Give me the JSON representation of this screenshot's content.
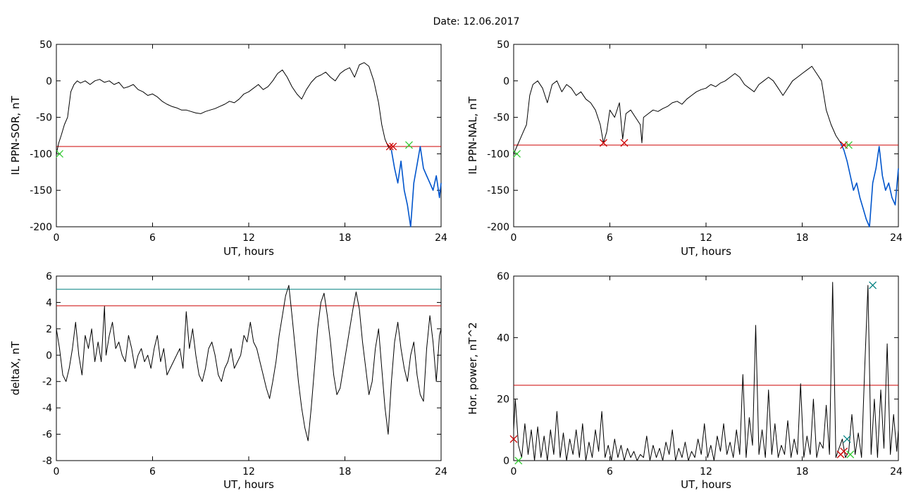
{
  "title": "Date:  12.06.2017",
  "colors": {
    "trace": "#000000",
    "threshold": "#cc0000",
    "highlight": "#0055cc",
    "upper": "#008080",
    "marker_red": "#cc0000",
    "marker_green": "#33cc33",
    "marker_teal": "#008080"
  },
  "chart_data": [
    {
      "id": "sor",
      "type": "line",
      "xlabel": "UT, hours",
      "ylabel": "IL PPN-SOR, nT",
      "xlim": [
        0,
        24
      ],
      "ylim": [
        -200,
        50
      ],
      "xticks": [
        "0",
        "6",
        "12",
        "18",
        "24"
      ],
      "yticks": [
        "50",
        "0",
        "-50",
        "-100",
        "-150",
        "-200"
      ],
      "series": [
        {
          "x": [
            0.0,
            0.15,
            0.3,
            0.5,
            0.7,
            0.9,
            1.1,
            1.3,
            1.5,
            1.8,
            2.1,
            2.4,
            2.7,
            3.0,
            3.3,
            3.6,
            3.9,
            4.2,
            4.5,
            4.8,
            5.1,
            5.4,
            5.7,
            6.0,
            6.3,
            6.6,
            6.9,
            7.2,
            7.5,
            7.8,
            8.1,
            8.4,
            8.7,
            9.0,
            9.3,
            9.6,
            9.9,
            10.2,
            10.5,
            10.8,
            11.1,
            11.4,
            11.7,
            12.0,
            12.3,
            12.6,
            12.9,
            13.2,
            13.5,
            13.8,
            14.1,
            14.4,
            14.7,
            15.0,
            15.3,
            15.6,
            15.9,
            16.2,
            16.5,
            16.8,
            17.1,
            17.4,
            17.7,
            18.0,
            18.3,
            18.6,
            18.9,
            19.2,
            19.5,
            19.8,
            20.1,
            20.3,
            20.5,
            20.7,
            20.9
          ],
          "y": [
            -100,
            -85,
            -75,
            -60,
            -50,
            -15,
            -5,
            0,
            -3,
            0,
            -5,
            0,
            2,
            -2,
            0,
            -5,
            -2,
            -10,
            -8,
            -5,
            -12,
            -15,
            -20,
            -18,
            -22,
            -28,
            -32,
            -35,
            -37,
            -40,
            -40,
            -42,
            -44,
            -45,
            -42,
            -40,
            -38,
            -35,
            -32,
            -28,
            -30,
            -25,
            -18,
            -15,
            -10,
            -5,
            -12,
            -8,
            0,
            10,
            15,
            5,
            -8,
            -18,
            -25,
            -12,
            -2,
            5,
            8,
            12,
            5,
            0,
            10,
            15,
            18,
            5,
            22,
            25,
            20,
            0,
            -30,
            -60,
            -80,
            -90,
            -95
          ]
        },
        {
          "x": [
            20.9,
            21.1,
            21.3,
            21.5,
            21.7,
            21.9,
            22.1,
            22.3,
            22.5,
            22.7,
            22.9,
            23.1,
            23.3,
            23.5,
            23.7,
            23.9,
            24.0
          ],
          "y": [
            -95,
            -120,
            -140,
            -110,
            -150,
            -170,
            -200,
            -140,
            -115,
            -90,
            -120,
            -130,
            -140,
            -150,
            -130,
            -160,
            -140
          ]
        }
      ],
      "threshold": -90,
      "markers": [
        {
          "x": 20.8,
          "y": -90,
          "color": "red"
        },
        {
          "x": 21.0,
          "y": -90,
          "color": "red"
        },
        {
          "x": 22.0,
          "y": -88,
          "color": "green"
        },
        {
          "x": 0.2,
          "y": -100,
          "color": "green"
        }
      ]
    },
    {
      "id": "nal",
      "type": "line",
      "xlabel": "UT, hours",
      "ylabel": "IL PPN-NAL, nT",
      "xlim": [
        0,
        24
      ],
      "ylim": [
        -200,
        50
      ],
      "xticks": [
        "0",
        "6",
        "12",
        "18",
        "24"
      ],
      "yticks": [
        "50",
        "0",
        "-50",
        "-100",
        "-150",
        "-200"
      ],
      "series": [
        {
          "x": [
            0.0,
            0.2,
            0.4,
            0.6,
            0.8,
            1.0,
            1.2,
            1.5,
            1.8,
            2.1,
            2.4,
            2.7,
            3.0,
            3.3,
            3.6,
            3.9,
            4.2,
            4.5,
            4.8,
            5.1,
            5.4,
            5.6,
            5.8,
            6.0,
            6.3,
            6.6,
            6.8,
            7.0,
            7.3,
            7.6,
            7.9,
            8.0,
            8.1,
            8.4,
            8.7,
            9.0,
            9.3,
            9.6,
            9.9,
            10.2,
            10.5,
            10.8,
            11.1,
            11.4,
            11.7,
            12.0,
            12.3,
            12.6,
            12.9,
            13.2,
            13.5,
            13.8,
            14.1,
            14.4,
            14.7,
            15.0,
            15.3,
            15.6,
            15.9,
            16.2,
            16.5,
            16.8,
            17.1,
            17.4,
            17.7,
            18.0,
            18.3,
            18.6,
            18.9,
            19.2,
            19.5,
            19.8,
            20.1,
            20.4
          ],
          "y": [
            -100,
            -90,
            -80,
            -70,
            -60,
            -20,
            -5,
            0,
            -10,
            -30,
            -5,
            0,
            -15,
            -5,
            -10,
            -20,
            -15,
            -25,
            -30,
            -40,
            -60,
            -85,
            -70,
            -40,
            -50,
            -30,
            -80,
            -45,
            -40,
            -50,
            -60,
            -85,
            -50,
            -45,
            -40,
            -42,
            -38,
            -35,
            -30,
            -28,
            -32,
            -25,
            -20,
            -15,
            -12,
            -10,
            -5,
            -8,
            -3,
            0,
            5,
            10,
            5,
            -5,
            -10,
            -15,
            -5,
            0,
            5,
            0,
            -10,
            -20,
            -10,
            0,
            5,
            10,
            15,
            20,
            10,
            0,
            -40,
            -60,
            -75,
            -85
          ]
        },
        {
          "x": [
            20.4,
            20.6,
            20.8,
            21.0,
            21.2,
            21.4,
            21.6,
            21.8,
            22.0,
            22.2,
            22.4,
            22.6,
            22.8,
            23.0,
            23.2,
            23.4,
            23.6,
            23.8,
            24.0
          ],
          "y": [
            -85,
            -95,
            -110,
            -130,
            -150,
            -140,
            -160,
            -175,
            -190,
            -200,
            -140,
            -120,
            -90,
            -130,
            -150,
            -140,
            -160,
            -170,
            -120
          ]
        }
      ],
      "threshold": -88,
      "markers": [
        {
          "x": 5.6,
          "y": -85,
          "color": "red"
        },
        {
          "x": 6.9,
          "y": -85,
          "color": "red"
        },
        {
          "x": 20.6,
          "y": -88,
          "color": "red"
        },
        {
          "x": 20.9,
          "y": -88,
          "color": "green"
        },
        {
          "x": 0.2,
          "y": -100,
          "color": "green"
        }
      ]
    },
    {
      "id": "deltax",
      "type": "line",
      "xlabel": "UT, hours",
      "ylabel": "deltaX, nT",
      "xlim": [
        0,
        24
      ],
      "ylim": [
        -8,
        6
      ],
      "xticks": [
        "0",
        "6",
        "12",
        "18",
        "24"
      ],
      "yticks": [
        "6",
        "4",
        "2",
        "0",
        "-2",
        "-4",
        "-6",
        "-8"
      ],
      "series": [
        {
          "x": [
            0.0,
            0.2,
            0.4,
            0.6,
            0.8,
            1.0,
            1.2,
            1.4,
            1.6,
            1.8,
            2.0,
            2.2,
            2.4,
            2.6,
            2.8,
            3.0,
            3.1,
            3.3,
            3.5,
            3.7,
            3.9,
            4.1,
            4.3,
            4.5,
            4.7,
            4.9,
            5.1,
            5.3,
            5.5,
            5.7,
            5.9,
            6.1,
            6.3,
            6.5,
            6.7,
            6.9,
            7.1,
            7.3,
            7.5,
            7.7,
            7.9,
            8.1,
            8.3,
            8.5,
            8.7,
            8.9,
            9.1,
            9.3,
            9.5,
            9.7,
            9.9,
            10.1,
            10.3,
            10.5,
            10.7,
            10.9,
            11.1,
            11.3,
            11.5,
            11.7,
            11.9,
            12.1,
            12.3,
            12.5,
            12.7,
            12.9,
            13.1,
            13.3,
            13.5,
            13.7,
            13.9,
            14.1,
            14.3,
            14.5,
            14.7,
            14.9,
            15.1,
            15.3,
            15.5,
            15.7,
            15.9,
            16.1,
            16.3,
            16.5,
            16.7,
            16.9,
            17.1,
            17.3,
            17.5,
            17.7,
            17.9,
            18.1,
            18.3,
            18.5,
            18.7,
            18.9,
            19.1,
            19.3,
            19.5,
            19.7,
            19.9,
            20.1,
            20.3,
            20.5,
            20.7,
            20.9,
            21.1,
            21.3,
            21.5,
            21.7,
            21.9,
            22.1,
            22.3,
            22.5,
            22.7,
            22.9,
            23.1,
            23.3,
            23.5,
            23.7,
            23.9,
            24.0
          ],
          "y": [
            2.0,
            0.5,
            -1.5,
            -2.0,
            -1.0,
            0.5,
            2.5,
            0.0,
            -1.5,
            1.5,
            0.5,
            2.0,
            -0.5,
            1.0,
            -0.5,
            3.7,
            0.0,
            1.5,
            2.5,
            0.5,
            1.0,
            0.0,
            -0.5,
            1.5,
            0.5,
            -1.0,
            0.0,
            0.5,
            -0.5,
            0.0,
            -1.0,
            0.5,
            1.5,
            -0.5,
            0.5,
            -1.5,
            -1.0,
            -0.5,
            0.0,
            0.5,
            -1.0,
            3.3,
            0.5,
            2.0,
            0.0,
            -1.5,
            -2.0,
            -1.0,
            0.5,
            1.0,
            0.0,
            -1.5,
            -2.0,
            -1.0,
            -0.5,
            0.5,
            -1.0,
            -0.5,
            0.0,
            1.5,
            1.0,
            2.5,
            1.0,
            0.5,
            -0.5,
            -1.5,
            -2.5,
            -3.3,
            -2.0,
            -0.5,
            1.5,
            3.0,
            4.5,
            5.3,
            3.0,
            0.5,
            -2.0,
            -4.0,
            -5.5,
            -6.5,
            -4.0,
            -1.0,
            2.0,
            4.0,
            4.7,
            3.0,
            1.0,
            -1.5,
            -3.0,
            -2.5,
            -1.0,
            0.5,
            2.0,
            3.5,
            4.8,
            3.5,
            1.0,
            -1.0,
            -3.0,
            -2.0,
            0.5,
            2.0,
            -1.0,
            -4.0,
            -6.0,
            -2.0,
            1.0,
            2.5,
            0.5,
            -1.0,
            -2.0,
            0.0,
            1.0,
            -1.5,
            -3.0,
            -3.5,
            0.5,
            3.0,
            1.0,
            -2.0,
            1.5,
            2.0
          ]
        }
      ],
      "threshold": 3.75,
      "threshold_upper": 5.0
    },
    {
      "id": "power",
      "type": "line",
      "xlabel": "UT, hours",
      "ylabel": "Hor. power, nT^2",
      "xlim": [
        0,
        24
      ],
      "ylim": [
        0,
        60
      ],
      "xticks": [
        "0",
        "6",
        "12",
        "18",
        "24"
      ],
      "yticks": [
        "60",
        "40",
        "20",
        "0"
      ],
      "series": [
        {
          "x": [
            0.0,
            0.1,
            0.3,
            0.5,
            0.7,
            0.9,
            1.1,
            1.3,
            1.5,
            1.7,
            1.9,
            2.1,
            2.3,
            2.5,
            2.7,
            2.9,
            3.1,
            3.3,
            3.5,
            3.7,
            3.9,
            4.1,
            4.3,
            4.5,
            4.7,
            4.9,
            5.1,
            5.3,
            5.5,
            5.7,
            5.9,
            6.1,
            6.3,
            6.5,
            6.7,
            6.9,
            7.1,
            7.3,
            7.5,
            7.7,
            7.9,
            8.1,
            8.3,
            8.5,
            8.7,
            8.9,
            9.1,
            9.3,
            9.5,
            9.7,
            9.9,
            10.1,
            10.3,
            10.5,
            10.7,
            10.9,
            11.1,
            11.3,
            11.5,
            11.7,
            11.9,
            12.1,
            12.3,
            12.5,
            12.7,
            12.9,
            13.1,
            13.3,
            13.5,
            13.7,
            13.9,
            14.1,
            14.3,
            14.5,
            14.7,
            14.9,
            15.1,
            15.3,
            15.5,
            15.7,
            15.9,
            16.1,
            16.3,
            16.5,
            16.7,
            16.9,
            17.1,
            17.3,
            17.5,
            17.7,
            17.9,
            18.1,
            18.3,
            18.5,
            18.7,
            18.9,
            19.1,
            19.3,
            19.5,
            19.7,
            19.9,
            20.1,
            20.3,
            20.5,
            20.7,
            20.9,
            21.1,
            21.3,
            21.5,
            21.7,
            21.9,
            22.1,
            22.3,
            22.5,
            22.7,
            22.9,
            23.1,
            23.3,
            23.5,
            23.7,
            23.9,
            24.0
          ],
          "y": [
            10,
            20,
            5,
            1,
            12,
            2,
            10,
            0,
            11,
            1,
            8,
            0,
            10,
            2,
            16,
            1,
            9,
            0,
            7,
            2,
            10,
            1,
            12,
            0,
            6,
            1,
            10,
            3,
            16,
            1,
            5,
            0,
            7,
            1,
            5,
            0,
            4,
            1,
            3,
            0,
            2,
            1,
            8,
            0,
            5,
            1,
            4,
            0,
            6,
            2,
            10,
            0,
            4,
            1,
            6,
            0,
            3,
            1,
            7,
            2,
            12,
            1,
            5,
            0,
            8,
            3,
            12,
            2,
            6,
            1,
            10,
            2,
            28,
            1,
            14,
            5,
            44,
            2,
            10,
            1,
            23,
            2,
            12,
            1,
            5,
            2,
            13,
            1,
            7,
            2,
            25,
            1,
            8,
            2,
            20,
            1,
            6,
            4,
            18,
            2,
            58,
            1,
            4,
            7,
            1,
            3,
            15,
            2,
            9,
            1,
            30,
            57,
            2,
            20,
            1,
            23,
            4,
            38,
            2,
            15,
            3,
            10
          ]
        }
      ],
      "threshold": 24.5,
      "markers": [
        {
          "x": 0.0,
          "y": 7,
          "color": "red"
        },
        {
          "x": 0.3,
          "y": 0,
          "color": "green"
        },
        {
          "x": 20.4,
          "y": 2,
          "color": "red"
        },
        {
          "x": 20.6,
          "y": 3,
          "color": "red"
        },
        {
          "x": 20.8,
          "y": 7,
          "color": "teal"
        },
        {
          "x": 21.0,
          "y": 2,
          "color": "green"
        },
        {
          "x": 22.4,
          "y": 57,
          "color": "teal"
        }
      ]
    }
  ]
}
